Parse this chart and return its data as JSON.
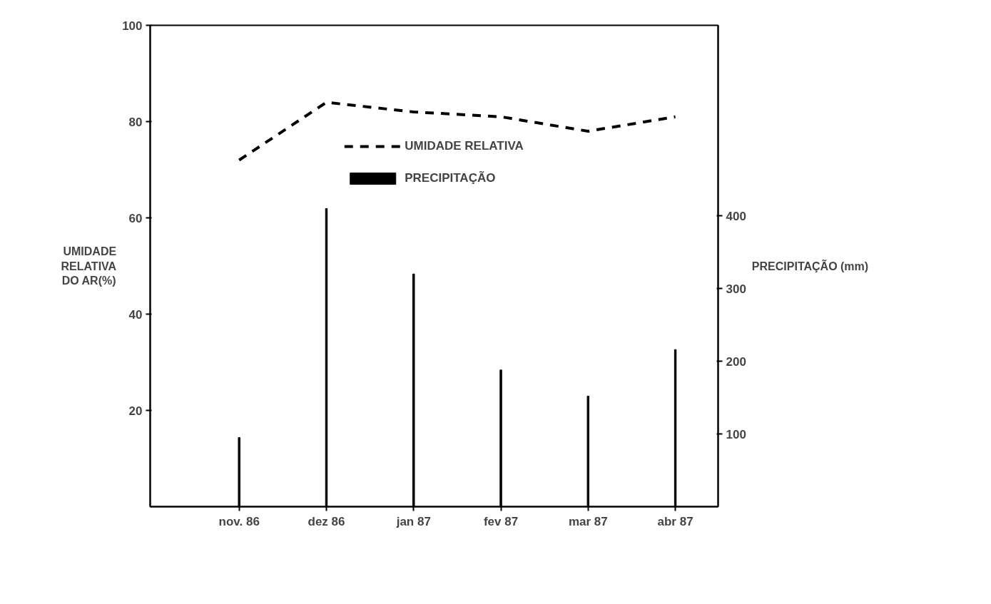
{
  "chart_data": {
    "type": "line",
    "categories": [
      "nov. 86",
      "dez 86",
      "jan 87",
      "fev 87",
      "mar 87",
      "abr 87"
    ],
    "ylabel": "UMIDADE RELATIVA DO AR(%)",
    "y2label": "PRECIPITAÇÃO (mm)",
    "ylim": [
      0,
      100
    ],
    "yticks": [
      20,
      40,
      60,
      80,
      100
    ],
    "y2lim": [
      0,
      662
    ],
    "y2ticks": [
      100,
      200,
      300,
      400
    ],
    "series": [
      {
        "name": "UMIDADE RELATIVA",
        "line_style": "dashed",
        "color": "#000000",
        "values": [
          72,
          84,
          82,
          81,
          78,
          81
        ]
      },
      {
        "name": "PRECIPITAÇÃO",
        "type": "bar",
        "axis": "y2",
        "color": "#000000",
        "values": [
          95,
          410,
          320,
          188,
          152,
          216
        ]
      }
    ],
    "legend": "top",
    "grid": false,
    "marker": "none"
  }
}
